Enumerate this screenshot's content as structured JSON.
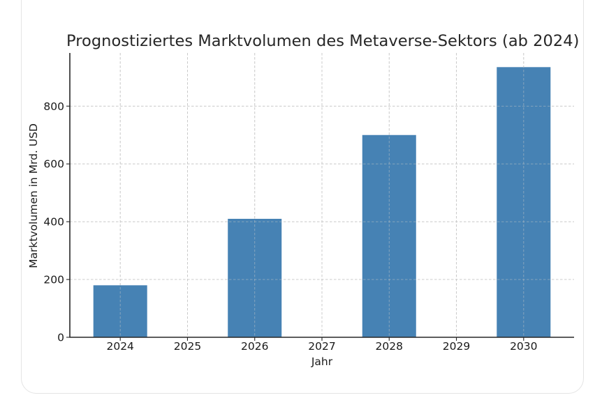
{
  "chart_data": {
    "type": "bar",
    "title": "Prognostiziertes Marktvolumen des Metaverse-Sektors (ab 2024)",
    "xlabel": "Jahr",
    "ylabel": "Marktvolumen in Mrd. USD",
    "categories": [
      "2024",
      "2026",
      "2028",
      "2030"
    ],
    "values": [
      180,
      410,
      700,
      935
    ],
    "x_ticks": [
      "2024",
      "2025",
      "2026",
      "2027",
      "2028",
      "2029",
      "2030"
    ],
    "y_ticks": [
      0,
      200,
      400,
      600,
      800
    ],
    "ylim": [
      0,
      984
    ],
    "xlim": [
      2023.25,
      2030.75
    ],
    "grid": true,
    "grid_style": "dashed",
    "bar_color": "#4682B4",
    "legend": null
  }
}
